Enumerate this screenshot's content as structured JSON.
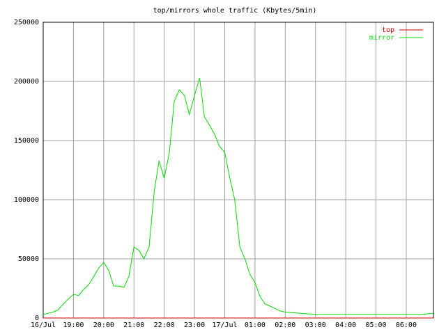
{
  "chart_data": {
    "type": "line",
    "title": "top/mirrors whole traffic (Kbytes/5min)",
    "x": [
      18,
      18.17,
      18.33,
      18.5,
      18.67,
      18.83,
      19,
      19.17,
      19.33,
      19.5,
      19.67,
      19.83,
      20,
      20.17,
      20.33,
      20.5,
      20.67,
      20.83,
      21,
      21.17,
      21.33,
      21.5,
      21.67,
      21.83,
      22,
      22.17,
      22.33,
      22.5,
      22.67,
      22.83,
      23,
      23.17,
      23.33,
      23.5,
      23.67,
      23.83,
      24,
      24.17,
      24.33,
      24.5,
      24.67,
      24.83,
      25,
      25.17,
      25.33,
      25.5,
      25.67,
      25.83,
      26,
      26.5,
      27,
      27.5,
      28,
      28.5,
      29,
      29.5,
      30,
      30.5,
      30.9
    ],
    "series": [
      {
        "name": "top",
        "color": "#cc0000",
        "values": [
          0,
          0,
          0,
          0,
          0,
          0,
          0,
          0,
          0,
          0,
          0,
          0,
          0,
          0,
          0,
          0,
          0,
          0,
          0,
          0,
          0,
          0,
          0,
          0,
          0,
          0,
          0,
          0,
          0,
          0,
          0,
          0,
          0,
          0,
          0,
          0,
          0,
          0,
          0,
          0,
          0,
          0,
          0,
          0,
          0,
          0,
          0,
          0,
          0,
          0,
          0,
          0,
          0,
          0,
          0,
          0,
          0,
          0,
          0
        ]
      },
      {
        "name": "mirror",
        "color": "#00dd00",
        "values": [
          3000,
          4000,
          5000,
          7000,
          12000,
          16000,
          20000,
          19000,
          24000,
          28000,
          35000,
          42000,
          47000,
          40000,
          27000,
          27000,
          26000,
          35000,
          60000,
          57000,
          50000,
          60000,
          107000,
          133000,
          118000,
          140000,
          183000,
          193000,
          188000,
          172000,
          188000,
          203000,
          170000,
          163000,
          155000,
          145000,
          140000,
          118000,
          100000,
          60000,
          50000,
          37000,
          30000,
          18000,
          12000,
          10000,
          8000,
          6000,
          5000,
          4000,
          3000,
          3000,
          3000,
          3000,
          3000,
          3000,
          3000,
          3000,
          4000
        ]
      }
    ],
    "xlim": [
      18,
      30.9
    ],
    "xticks": [
      {
        "value": 18,
        "label": "16/Jul"
      },
      {
        "value": 19,
        "label": "19:00"
      },
      {
        "value": 20,
        "label": "20:00"
      },
      {
        "value": 21,
        "label": "21:00"
      },
      {
        "value": 22,
        "label": "22:00"
      },
      {
        "value": 23,
        "label": "23:00"
      },
      {
        "value": 24,
        "label": "17/Jul"
      },
      {
        "value": 25,
        "label": "01:00"
      },
      {
        "value": 26,
        "label": "02:00"
      },
      {
        "value": 27,
        "label": "03:00"
      },
      {
        "value": 28,
        "label": "04:00"
      },
      {
        "value": 29,
        "label": "05:00"
      },
      {
        "value": 30,
        "label": "06:00"
      }
    ],
    "ylim": [
      0,
      250000
    ],
    "yticks": [
      0,
      50000,
      100000,
      150000,
      200000,
      250000
    ],
    "grid": true,
    "legend": "upper right"
  }
}
